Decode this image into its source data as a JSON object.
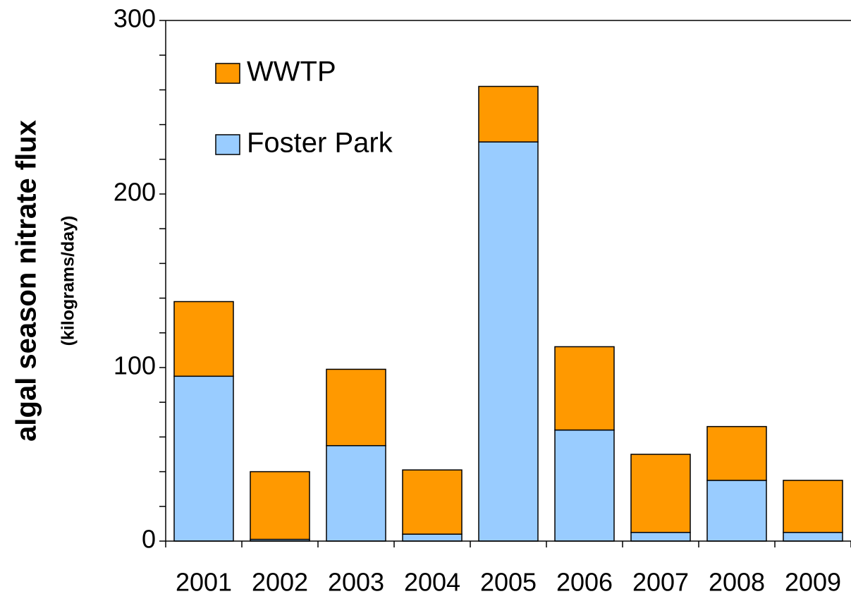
{
  "chart_data": {
    "type": "stacked_bar",
    "y_label": "algal season nitrate flux",
    "y_sublabel": "(kilograms/day)",
    "categories": [
      "2001",
      "2002",
      "2003",
      "2004",
      "2005",
      "2006",
      "2007",
      "2008",
      "2009"
    ],
    "series": [
      {
        "name": "Foster Park",
        "color": "#99ccff",
        "values": [
          95,
          1,
          55,
          4,
          230,
          64,
          5,
          35,
          5
        ]
      },
      {
        "name": "WWTP",
        "color": "#ff9900",
        "values": [
          43,
          39,
          44,
          37,
          32,
          48,
          45,
          31,
          30
        ]
      }
    ],
    "ylim": [
      0,
      300
    ],
    "yticks": [
      0,
      100,
      200,
      300
    ],
    "minor_yticks": [
      20,
      40,
      60,
      80,
      120,
      140,
      160,
      180,
      220,
      240,
      260,
      280
    ],
    "grid": false,
    "legend": "top-left"
  }
}
